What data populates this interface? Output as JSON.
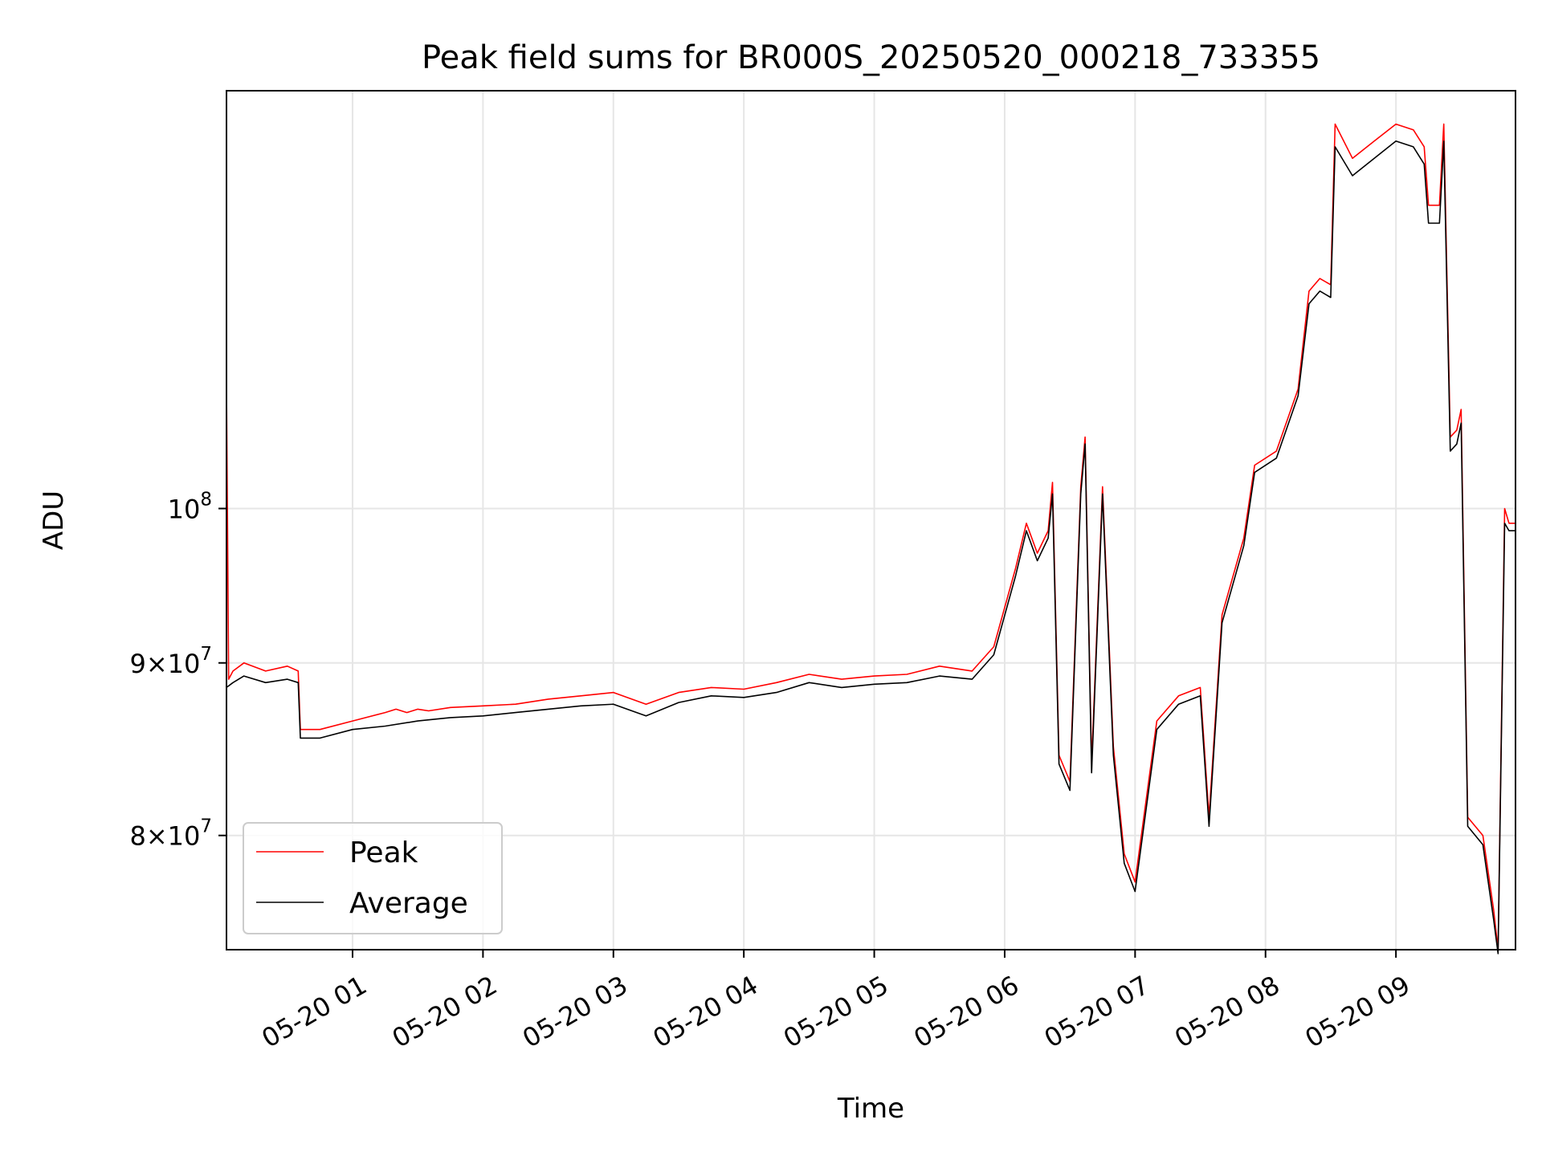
{
  "chart_data": {
    "type": "line",
    "title": "Peak field sums for BR000S_20250520_000218_733355",
    "xlabel": "Time",
    "ylabel": "ADU",
    "x_range": [
      "2025-05-20 00:02",
      "2025-05-20 09:55"
    ],
    "y_scale": "log",
    "ylim": [
      74000000,
      133000000
    ],
    "grid": true,
    "legend_position": "lower-left",
    "x_ticks": [
      "05-20 01",
      "05-20 02",
      "05-20 03",
      "05-20 04",
      "05-20 05",
      "05-20 06",
      "05-20 07",
      "05-20 08",
      "05-20 09"
    ],
    "x_tick_values": [
      "2025-05-20 01:00",
      "2025-05-20 02:00",
      "2025-05-20 03:00",
      "2025-05-20 04:00",
      "2025-05-20 05:00",
      "2025-05-20 06:00",
      "2025-05-20 07:00",
      "2025-05-20 08:00",
      "2025-05-20 09:00"
    ],
    "y_ticks": [
      {
        "value": 80000000,
        "base": "8",
        "sup": "7",
        "times": "×10"
      },
      {
        "value": 90000000,
        "base": "9",
        "sup": "7",
        "times": "×10"
      },
      {
        "value": 100000000,
        "base": "10",
        "sup": "8",
        "times": ""
      }
    ],
    "series": [
      {
        "name": "Peak",
        "color": "#ff0000",
        "x": [
          "2025-05-20 00:02",
          "2025-05-20 00:03",
          "2025-05-20 00:05",
          "2025-05-20 00:10",
          "2025-05-20 00:20",
          "2025-05-20 00:30",
          "2025-05-20 00:35",
          "2025-05-20 00:36",
          "2025-05-20 00:45",
          "2025-05-20 01:00",
          "2025-05-20 01:15",
          "2025-05-20 01:20",
          "2025-05-20 01:25",
          "2025-05-20 01:30",
          "2025-05-20 01:35",
          "2025-05-20 01:45",
          "2025-05-20 02:00",
          "2025-05-20 02:15",
          "2025-05-20 02:30",
          "2025-05-20 02:45",
          "2025-05-20 03:00",
          "2025-05-20 03:15",
          "2025-05-20 03:30",
          "2025-05-20 03:45",
          "2025-05-20 04:00",
          "2025-05-20 04:15",
          "2025-05-20 04:30",
          "2025-05-20 04:45",
          "2025-05-20 05:00",
          "2025-05-20 05:15",
          "2025-05-20 05:30",
          "2025-05-20 05:45",
          "2025-05-20 05:55",
          "2025-05-20 06:05",
          "2025-05-20 06:10",
          "2025-05-20 06:15",
          "2025-05-20 06:20",
          "2025-05-20 06:22",
          "2025-05-20 06:25",
          "2025-05-20 06:30",
          "2025-05-20 06:35",
          "2025-05-20 06:37",
          "2025-05-20 06:40",
          "2025-05-20 06:45",
          "2025-05-20 06:50",
          "2025-05-20 06:55",
          "2025-05-20 07:00",
          "2025-05-20 07:10",
          "2025-05-20 07:20",
          "2025-05-20 07:30",
          "2025-05-20 07:34",
          "2025-05-20 07:40",
          "2025-05-20 07:50",
          "2025-05-20 07:55",
          "2025-05-20 08:05",
          "2025-05-20 08:15",
          "2025-05-20 08:20",
          "2025-05-20 08:25",
          "2025-05-20 08:30",
          "2025-05-20 08:32",
          "2025-05-20 08:40",
          "2025-05-20 08:50",
          "2025-05-20 09:00",
          "2025-05-20 09:08",
          "2025-05-20 09:13",
          "2025-05-20 09:15",
          "2025-05-20 09:20",
          "2025-05-20 09:22",
          "2025-05-20 09:25",
          "2025-05-20 09:28",
          "2025-05-20 09:30",
          "2025-05-20 09:33",
          "2025-05-20 09:40",
          "2025-05-20 09:45",
          "2025-05-20 09:47",
          "2025-05-20 09:50",
          "2025-05-20 09:52",
          "2025-05-20 09:55"
        ],
        "values": [
          109000000,
          89000000,
          89500000,
          90000000,
          89500000,
          89800000,
          89500000,
          86000000,
          86000000,
          86500000,
          87000000,
          87200000,
          87000000,
          87200000,
          87100000,
          87300000,
          87400000,
          87500000,
          87800000,
          88000000,
          88200000,
          87500000,
          88200000,
          88500000,
          88400000,
          88800000,
          89300000,
          89000000,
          89200000,
          89300000,
          89800000,
          89500000,
          91000000,
          96000000,
          99000000,
          97000000,
          98500000,
          101800000,
          84500000,
          83000000,
          101500000,
          105000000,
          84000000,
          101500000,
          85000000,
          79000000,
          77500000,
          86500000,
          88000000,
          88500000,
          81000000,
          93000000,
          98000000,
          103000000,
          104000000,
          108500000,
          116000000,
          117000000,
          116500000,
          130000000,
          127000000,
          128500000,
          130000000,
          129500000,
          128000000,
          123000000,
          123000000,
          130000000,
          105000000,
          105500000,
          107000000,
          81000000,
          80000000,
          76000000,
          74000000,
          100000000,
          99000000,
          99000000
        ]
      },
      {
        "name": "Average",
        "color": "#000000",
        "x": [
          "2025-05-20 00:02",
          "2025-05-20 00:05",
          "2025-05-20 00:10",
          "2025-05-20 00:20",
          "2025-05-20 00:30",
          "2025-05-20 00:35",
          "2025-05-20 00:36",
          "2025-05-20 00:45",
          "2025-05-20 01:00",
          "2025-05-20 01:15",
          "2025-05-20 01:30",
          "2025-05-20 01:45",
          "2025-05-20 02:00",
          "2025-05-20 02:15",
          "2025-05-20 02:30",
          "2025-05-20 02:45",
          "2025-05-20 03:00",
          "2025-05-20 03:15",
          "2025-05-20 03:30",
          "2025-05-20 03:45",
          "2025-05-20 04:00",
          "2025-05-20 04:15",
          "2025-05-20 04:30",
          "2025-05-20 04:45",
          "2025-05-20 05:00",
          "2025-05-20 05:15",
          "2025-05-20 05:30",
          "2025-05-20 05:45",
          "2025-05-20 05:55",
          "2025-05-20 06:05",
          "2025-05-20 06:10",
          "2025-05-20 06:15",
          "2025-05-20 06:20",
          "2025-05-20 06:22",
          "2025-05-20 06:25",
          "2025-05-20 06:30",
          "2025-05-20 06:35",
          "2025-05-20 06:37",
          "2025-05-20 06:40",
          "2025-05-20 06:45",
          "2025-05-20 06:50",
          "2025-05-20 06:55",
          "2025-05-20 07:00",
          "2025-05-20 07:10",
          "2025-05-20 07:20",
          "2025-05-20 07:30",
          "2025-05-20 07:34",
          "2025-05-20 07:40",
          "2025-05-20 07:50",
          "2025-05-20 07:55",
          "2025-05-20 08:05",
          "2025-05-20 08:15",
          "2025-05-20 08:20",
          "2025-05-20 08:25",
          "2025-05-20 08:30",
          "2025-05-20 08:32",
          "2025-05-20 08:40",
          "2025-05-20 08:50",
          "2025-05-20 09:00",
          "2025-05-20 09:08",
          "2025-05-20 09:13",
          "2025-05-20 09:15",
          "2025-05-20 09:20",
          "2025-05-20 09:22",
          "2025-05-20 09:25",
          "2025-05-20 09:28",
          "2025-05-20 09:30",
          "2025-05-20 09:33",
          "2025-05-20 09:40",
          "2025-05-20 09:45",
          "2025-05-20 09:47",
          "2025-05-20 09:50",
          "2025-05-20 09:52",
          "2025-05-20 09:55"
        ],
        "values": [
          88500000,
          88800000,
          89200000,
          88800000,
          89000000,
          88800000,
          85500000,
          85500000,
          86000000,
          86200000,
          86500000,
          86700000,
          86800000,
          87000000,
          87200000,
          87400000,
          87500000,
          86800000,
          87600000,
          88000000,
          87900000,
          88200000,
          88800000,
          88500000,
          88700000,
          88800000,
          89200000,
          89000000,
          90500000,
          95500000,
          98500000,
          96500000,
          98000000,
          101000000,
          84000000,
          82500000,
          101000000,
          104500000,
          83500000,
          101000000,
          84500000,
          78500000,
          77000000,
          86000000,
          87500000,
          88000000,
          80500000,
          92500000,
          97500000,
          102500000,
          103500000,
          108000000,
          115000000,
          116000000,
          115500000,
          128000000,
          125500000,
          127000000,
          128500000,
          128000000,
          126500000,
          121500000,
          121500000,
          128500000,
          104000000,
          104500000,
          106000000,
          80500000,
          79500000,
          75500000,
          73800000,
          99000000,
          98500000,
          98500000
        ]
      }
    ]
  }
}
